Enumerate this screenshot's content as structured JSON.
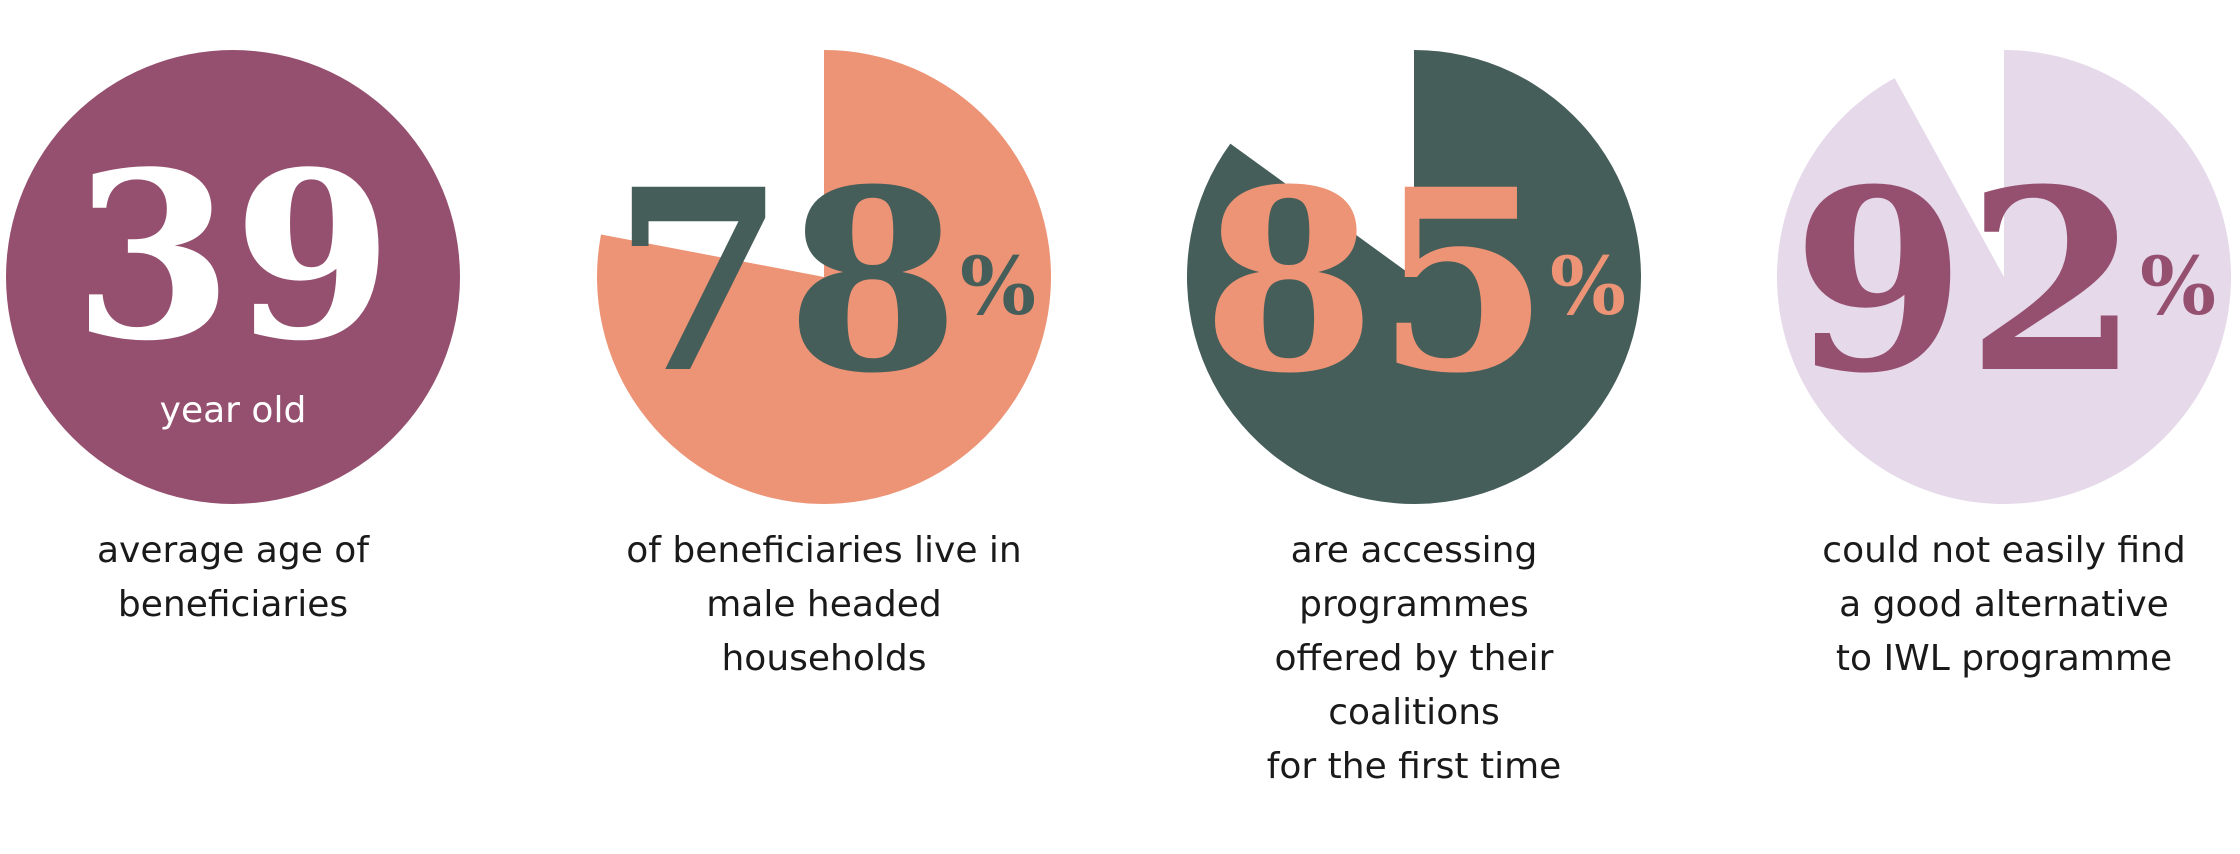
{
  "items": [
    {
      "type": "circle",
      "value": 39,
      "label": "year old",
      "color": "#96506f",
      "text_color": "#ffffff",
      "caption": [
        "average age of",
        "beneficiaries"
      ]
    },
    {
      "type": "pie",
      "value": 78,
      "unit": "%",
      "color": "#ec9475",
      "text_color": "#465e5a",
      "caption": [
        "of beneficiaries live in",
        "male headed",
        "households"
      ]
    },
    {
      "type": "pie",
      "value": 85,
      "unit": "%",
      "color": "#465e5a",
      "text_color": "#ec9475",
      "caption": [
        "are accessing",
        "programmes",
        "offered by their",
        "coalitions",
        "for the first time"
      ]
    },
    {
      "type": "pie",
      "value": 92,
      "unit": "%",
      "color": "#e5d9ea",
      "text_color": "#96506f",
      "caption": [
        "could not easily find",
        "a good alternative",
        "to IWL programme"
      ]
    }
  ]
}
